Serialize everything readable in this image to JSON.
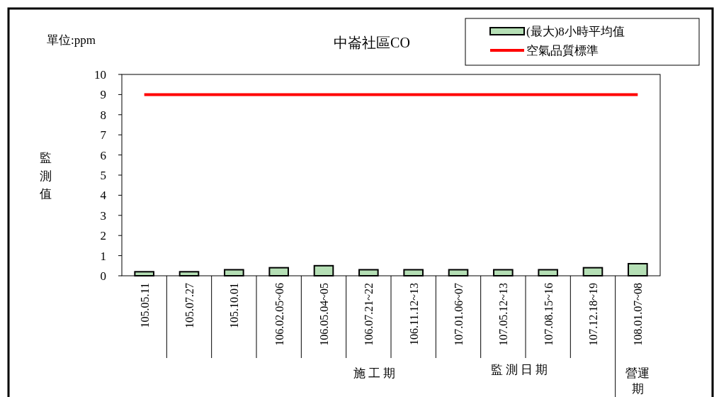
{
  "chart_data": {
    "type": "bar",
    "title": "中崙社區CO",
    "xlabel": "監測日期",
    "ylabel": "監測值",
    "annotations": [
      "單位:ppm",
      "施工期",
      "營運期"
    ],
    "categories": [
      "105.05.11",
      "105.07.27",
      "105.10.01",
      "106.02.05~06",
      "106.05.04~05",
      "106.07.21~22",
      "106.11.12~13",
      "107.01.06~07",
      "107.05.12~13",
      "107.08.15~16",
      "107.12.18~19",
      "108.01.07~08"
    ],
    "series": [
      {
        "name": "(最大)8小時平均值",
        "color": "#b5dfb5",
        "values": [
          0.2,
          0.2,
          0.3,
          0.4,
          0.5,
          0.3,
          0.3,
          0.3,
          0.3,
          0.3,
          0.4,
          0.6
        ]
      },
      {
        "name": "空氣品質標準",
        "type": "line",
        "color": "#ff0000",
        "values": [
          9,
          9,
          9,
          9,
          9,
          9,
          9,
          9,
          9,
          9,
          9,
          9
        ]
      }
    ],
    "ylim": [
      0,
      10
    ],
    "yticks": [
      0,
      1,
      2,
      3,
      4,
      5,
      6,
      7,
      8,
      9,
      10
    ],
    "grid": false,
    "legend": "top right"
  }
}
